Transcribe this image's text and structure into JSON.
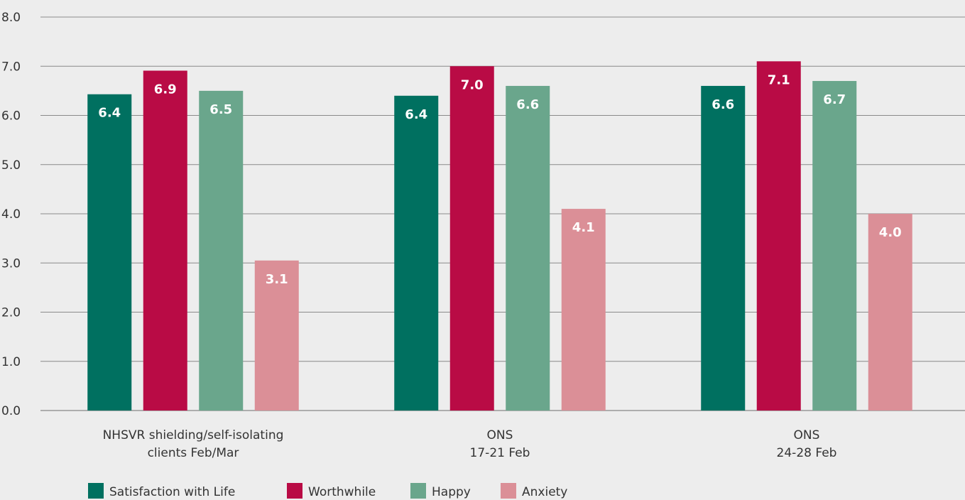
{
  "chart_data": {
    "type": "bar",
    "title": "",
    "xlabel": "",
    "ylabel": "",
    "ylim": [
      0,
      8
    ],
    "yticks": [
      "0.0",
      "1.0",
      "2.0",
      "3.0",
      "4.0",
      "5.0",
      "6.0",
      "7.0",
      "8.0"
    ],
    "grid": true,
    "legend": "bottom-left",
    "categories": [
      [
        "NHSVR shielding/self-isolating",
        "clients Feb/Mar"
      ],
      [
        "ONS",
        "17-21 Feb"
      ],
      [
        "ONS",
        "24-28 Feb"
      ]
    ],
    "series": [
      {
        "name": "Satisfaction with Life",
        "color": "#007060",
        "values": [
          6.43,
          6.4,
          6.6
        ],
        "labels": [
          "6.4",
          "6.4",
          "6.6"
        ]
      },
      {
        "name": "Worthwhile",
        "color": "#b90b45",
        "values": [
          6.91,
          7.0,
          7.1
        ],
        "labels": [
          "6.9",
          "7.0",
          "7.1"
        ]
      },
      {
        "name": "Happy",
        "color": "#6aa68c",
        "values": [
          6.5,
          6.6,
          6.7
        ],
        "labels": [
          "6.5",
          "6.6",
          "6.7"
        ]
      },
      {
        "name": "Anxiety",
        "color": "#db8f97",
        "values": [
          3.05,
          4.1,
          4.0
        ],
        "labels": [
          "3.1",
          "4.1",
          "4.0"
        ]
      }
    ]
  }
}
